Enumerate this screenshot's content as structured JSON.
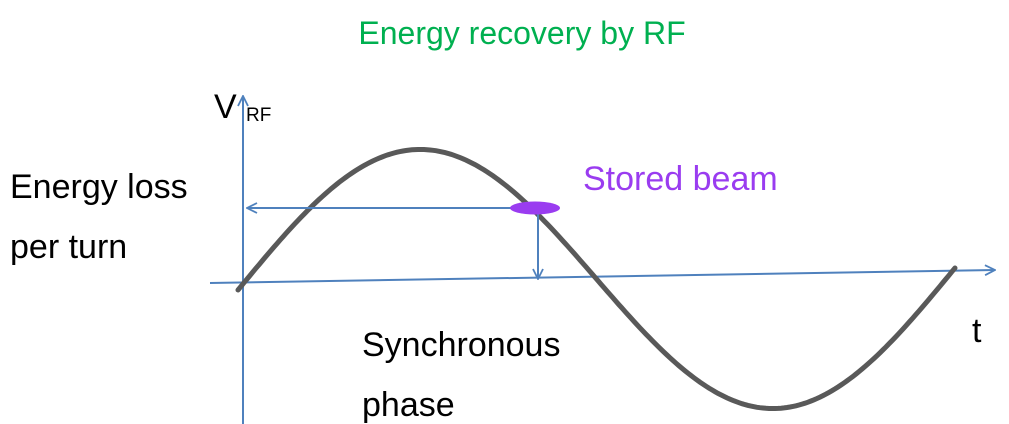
{
  "title": "Energy recovery by RF",
  "y_axis": {
    "label": "V",
    "subscript": "RF"
  },
  "x_axis": {
    "label": "t"
  },
  "energy_loss": {
    "lines": [
      "Energy loss",
      "per turn"
    ]
  },
  "beam": {
    "label": "Stored beam"
  },
  "synchronous_phase": {
    "lines": [
      "Synchronous",
      "phase"
    ]
  }
}
